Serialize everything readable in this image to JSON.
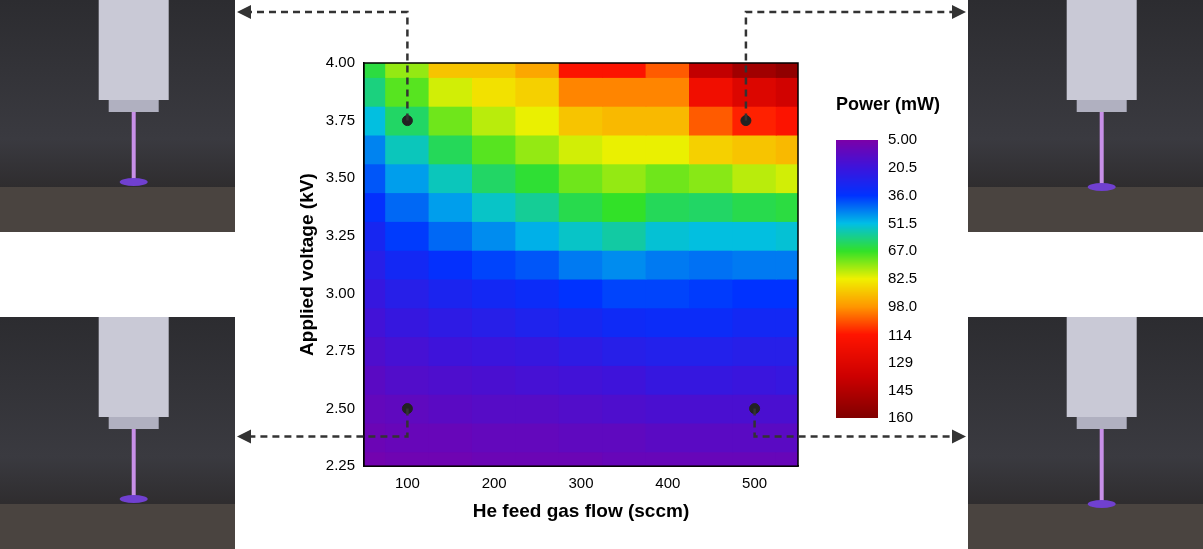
{
  "chart_data": {
    "type": "heatmap",
    "x_label": "He feed gas flow (sccm)",
    "y_label": "Applied voltage (kV)",
    "x": [
      50,
      100,
      150,
      200,
      250,
      300,
      350,
      400,
      450,
      500,
      550
    ],
    "y": [
      2.25,
      2.375,
      2.5,
      2.625,
      2.75,
      2.875,
      3,
      3.125,
      3.25,
      3.375,
      3.5,
      3.625,
      3.75,
      3.875,
      4
    ],
    "cells": [
      [
        7,
        8,
        8,
        9,
        9,
        9,
        10,
        10,
        10,
        10,
        10
      ],
      [
        9,
        10,
        10,
        11,
        11,
        12,
        12,
        13,
        13,
        13,
        13
      ],
      [
        11,
        12,
        13,
        14,
        14,
        15,
        16,
        17,
        17,
        17,
        17
      ],
      [
        13,
        15,
        16,
        17,
        18,
        19,
        20,
        22,
        22,
        21,
        22
      ],
      [
        16,
        18,
        20,
        21,
        22,
        24,
        26,
        27,
        27,
        26,
        26
      ],
      [
        19,
        22,
        24,
        26,
        28,
        30,
        32,
        33,
        33,
        31,
        31
      ],
      [
        22,
        26,
        29,
        31,
        33,
        36,
        38,
        38,
        37,
        36,
        36
      ],
      [
        26,
        31,
        35,
        38,
        40,
        44,
        46,
        44,
        43,
        44,
        44
      ],
      [
        30,
        37,
        42,
        46,
        50,
        54,
        57,
        53,
        52,
        52,
        53
      ],
      [
        35,
        42,
        48,
        54,
        58,
        64,
        67,
        63,
        62,
        64,
        65
      ],
      [
        40,
        48,
        55,
        62,
        66,
        72,
        75,
        72,
        74,
        78,
        80
      ],
      [
        45,
        55,
        63,
        70,
        75,
        80,
        82,
        82,
        88,
        90,
        92
      ],
      [
        52,
        62,
        72,
        78,
        82,
        90,
        92,
        92,
        105,
        112,
        115
      ],
      [
        60,
        70,
        80,
        85,
        88,
        100,
        100,
        100,
        120,
        130,
        135
      ],
      [
        65,
        75,
        90,
        90,
        95,
        115,
        115,
        105,
        140,
        150,
        155
      ]
    ],
    "xlim": [
      50,
      550
    ],
    "xticks": [
      100,
      200,
      300,
      400,
      500
    ],
    "ylim": [
      2.25,
      4
    ],
    "yticks": [
      2.25,
      {
        "value": 2.5,
        "label": "2.50"
      },
      2.75,
      {
        "value": 3,
        "label": "3.00"
      },
      3.25,
      {
        "value": 3.5,
        "label": "3.50"
      },
      3.75,
      {
        "value": 4,
        "label": "4.00"
      }
    ],
    "colorbar": {
      "title": "Power (mW)",
      "range": [
        5,
        160
      ],
      "ticks": [
        {
          "value": 5,
          "label": "5.00"
        },
        20.5,
        {
          "value": 36,
          "label": "36.0"
        },
        51.5,
        {
          "value": 67,
          "label": "67.0"
        },
        82.5,
        {
          "value": 98,
          "label": "98.0"
        },
        114,
        129,
        145,
        160
      ]
    },
    "points": {
      "x": [
        100,
        490,
        100,
        500
      ],
      "y": [
        3.75,
        3.75,
        2.5,
        2.5
      ]
    },
    "grid": false
  }
}
